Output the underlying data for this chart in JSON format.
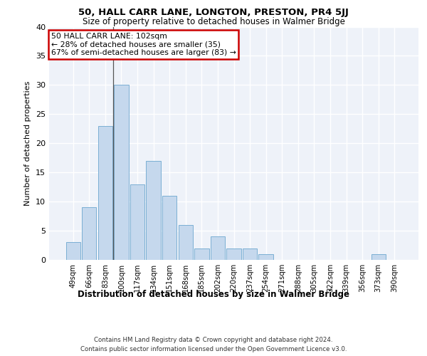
{
  "title": "50, HALL CARR LANE, LONGTON, PRESTON, PR4 5JJ",
  "subtitle": "Size of property relative to detached houses in Walmer Bridge",
  "xlabel": "Distribution of detached houses by size in Walmer Bridge",
  "ylabel": "Number of detached properties",
  "categories": [
    "49sqm",
    "66sqm",
    "83sqm",
    "100sqm",
    "117sqm",
    "134sqm",
    "151sqm",
    "168sqm",
    "185sqm",
    "202sqm",
    "220sqm",
    "237sqm",
    "254sqm",
    "271sqm",
    "288sqm",
    "305sqm",
    "322sqm",
    "339sqm",
    "356sqm",
    "373sqm",
    "390sqm"
  ],
  "values": [
    3,
    9,
    23,
    30,
    13,
    17,
    11,
    6,
    2,
    4,
    2,
    2,
    1,
    0,
    0,
    0,
    0,
    0,
    0,
    1,
    0
  ],
  "bar_color": "#c5d8ed",
  "bar_edge_color": "#7bafd4",
  "highlight_bar_index": 3,
  "highlight_line_color": "#555555",
  "annotation_text": "50 HALL CARR LANE: 102sqm\n← 28% of detached houses are smaller (35)\n67% of semi-detached houses are larger (83) →",
  "annotation_box_color": "#ffffff",
  "annotation_box_edge_color": "#cc0000",
  "background_color": "#eef2f9",
  "grid_color": "#ffffff",
  "ylim": [
    0,
    40
  ],
  "yticks": [
    0,
    5,
    10,
    15,
    20,
    25,
    30,
    35,
    40
  ],
  "footer_line1": "Contains HM Land Registry data © Crown copyright and database right 2024.",
  "footer_line2": "Contains public sector information licensed under the Open Government Licence v3.0."
}
